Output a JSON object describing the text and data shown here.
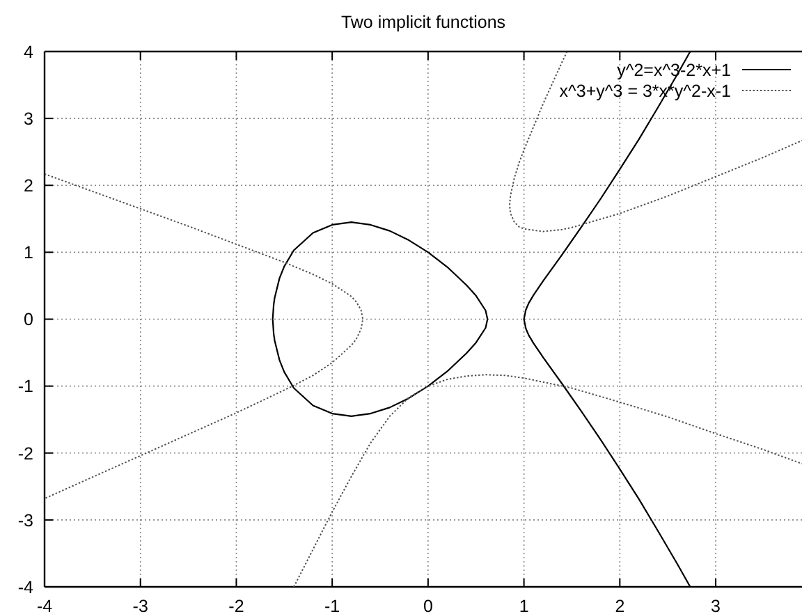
{
  "chart_data": {
    "type": "line",
    "title": "Two implicit functions",
    "xlim": [
      -4,
      3.9
    ],
    "ylim": [
      -4,
      4
    ],
    "xticks": [
      -4,
      -3,
      -2,
      -1,
      0,
      1,
      2,
      3
    ],
    "yticks": [
      -4,
      -3,
      -2,
      -1,
      0,
      1,
      2,
      3,
      4
    ],
    "grid": true,
    "legend": "top right",
    "series": [
      {
        "name": "y^2=x^3-2*x+1",
        "color": "#000000",
        "line_style": "solid",
        "x": [
          -1.62,
          -1.61,
          -1.6,
          -1.55,
          -1.5,
          -1.4,
          -1.2,
          -1,
          -0.8,
          -0.6,
          -0.4,
          -0.2,
          0,
          0.2,
          0.4,
          0.5,
          0.6,
          0.62,
          0.6,
          0.5,
          0.4,
          0.2,
          0,
          -0.2,
          -0.4,
          -0.6,
          -0.8,
          -1,
          -1.2,
          -1.4,
          -1.5,
          -1.55,
          -1.6,
          -1.61,
          -1.62,
          null,
          2.73,
          2.6,
          2.4,
          2.2,
          2,
          1.8,
          1.6,
          1.4,
          1.2,
          1.1,
          1.05,
          1.02,
          1,
          1.02,
          1.05,
          1.1,
          1.2,
          1.4,
          1.6,
          1.8,
          2,
          2.2,
          2.4,
          2.6,
          2.73
        ],
        "values": [
          0.01,
          0.22,
          0.32,
          0.61,
          0.79,
          1.03,
          1.29,
          1.41,
          1.45,
          1.41,
          1.32,
          1.18,
          1,
          0.78,
          0.51,
          0.35,
          0.13,
          0,
          -0.13,
          -0.35,
          -0.51,
          -0.78,
          -1,
          -1.18,
          -1.32,
          -1.41,
          -1.45,
          -1.41,
          -1.29,
          -1.03,
          -0.79,
          -0.61,
          -0.32,
          -0.22,
          -0.01,
          null,
          3.99,
          3.66,
          3.17,
          2.69,
          2.24,
          1.8,
          1.38,
          0.97,
          0.57,
          0.36,
          0.24,
          0.14,
          0,
          -0.14,
          -0.24,
          -0.36,
          -0.57,
          -0.97,
          -1.38,
          -1.8,
          -2.24,
          -2.69,
          -3.17,
          -3.66,
          -3.99
        ]
      },
      {
        "name": "x^3+y^3 = 3*x*y^2-x-1",
        "color": "#505050",
        "line_style": "dotted",
        "x": [
          -4,
          -3.5,
          -3,
          -2.5,
          -2,
          -1.5,
          -1.4,
          -1.2,
          -1,
          -0.8,
          -0.75,
          -0.7,
          -0.68,
          -0.7,
          -0.75,
          -0.8,
          -1,
          -1.2,
          -1.4,
          -1.5,
          -2,
          -2.5,
          -3,
          -3.5,
          -4,
          null,
          -1.4,
          -1.2,
          -1,
          -0.8,
          -0.6,
          -0.4,
          -0.2,
          0,
          0.2,
          0.4,
          0.6,
          0.8,
          1,
          1.5,
          2,
          2.5,
          3,
          3.5,
          3.9,
          null,
          1.45,
          1.4,
          1.2,
          1,
          0.95,
          0.9,
          0.86,
          0.85,
          0.86,
          0.9,
          0.95,
          1,
          1.2,
          1.4,
          1.5,
          2,
          2.5,
          3,
          3.5,
          3.9
        ],
        "values": [
          2.17,
          1.91,
          1.65,
          1.39,
          1.12,
          0.85,
          0.79,
          0.67,
          0.53,
          0.34,
          0.26,
          0.14,
          0,
          -0.15,
          -0.3,
          -0.39,
          -0.65,
          -0.84,
          -0.99,
          -1.06,
          -1.4,
          -1.72,
          -2.04,
          -2.36,
          -2.68,
          null,
          -4,
          -3.44,
          -2.88,
          -2.35,
          -1.85,
          -1.45,
          -1.17,
          -1,
          -0.9,
          -0.85,
          -0.83,
          -0.84,
          -0.88,
          -1.03,
          -1.24,
          -1.46,
          -1.71,
          -1.95,
          -2.16,
          null,
          4,
          3.85,
          3.22,
          2.53,
          2.34,
          2.11,
          1.85,
          1.7,
          1.58,
          1.45,
          1.38,
          1.35,
          1.31,
          1.34,
          1.37,
          1.58,
          1.84,
          2.13,
          2.42,
          2.67
        ]
      }
    ]
  }
}
